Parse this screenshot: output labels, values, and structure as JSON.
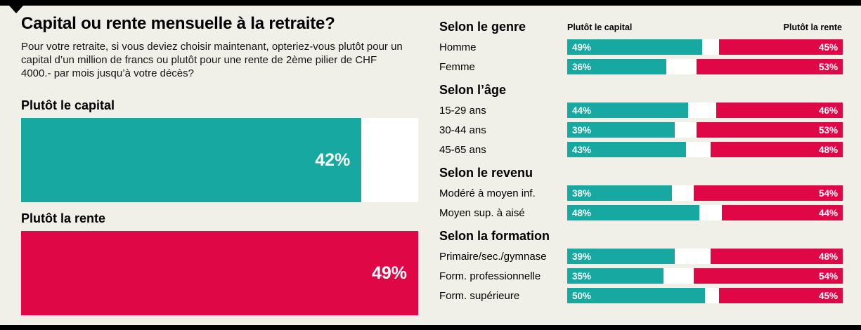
{
  "page": {
    "background": "#f0efe8",
    "accent_teal": "#17a8a1",
    "accent_red": "#e00747"
  },
  "header": {
    "title": "Capital ou rente mensuelle à la retraite?",
    "intro": "Pour votre retraite, si vous deviez choisir maintenant, opteriez-vous plutôt pour un capital d’un million de francs ou plutôt pour une rente de 2ème pilier de CHF 4000.- par mois jusqu’à votre décès?"
  },
  "chart_data": {
    "type": "bar",
    "unit": "%",
    "title": "Capital ou rente mensuelle à la retraite?",
    "legend_position": "top-right",
    "legend": {
      "capital": "Plutôt le capital",
      "rente": "Plutôt la rente"
    },
    "overall": [
      {
        "label": "Plutôt le capital",
        "value": 42,
        "color_key": "teal"
      },
      {
        "label": "Plutôt la rente",
        "value": 49,
        "color_key": "red"
      }
    ],
    "sections": [
      {
        "title": "Selon le genre",
        "rows": [
          {
            "label": "Homme",
            "capital": 49,
            "rente": 45
          },
          {
            "label": "Femme",
            "capital": 36,
            "rente": 53
          }
        ]
      },
      {
        "title": "Selon l’âge",
        "rows": [
          {
            "label": "15-29 ans",
            "capital": 44,
            "rente": 46
          },
          {
            "label": "30-44 ans",
            "capital": 39,
            "rente": 53
          },
          {
            "label": "45-65 ans",
            "capital": 43,
            "rente": 48
          }
        ]
      },
      {
        "title": "Selon le revenu",
        "rows": [
          {
            "label": "Modéré à moyen inf.",
            "capital": 38,
            "rente": 54
          },
          {
            "label": "Moyen sup. à aisé",
            "capital": 48,
            "rente": 44
          }
        ]
      },
      {
        "title": "Selon la formation",
        "rows": [
          {
            "label": "Primaire/sec./gymnase",
            "capital": 39,
            "rente": 48
          },
          {
            "label": "Form. professionnelle",
            "capital": 35,
            "rente": 54
          },
          {
            "label": "Form. supérieure",
            "capital": 50,
            "rente": 45
          }
        ]
      }
    ]
  }
}
